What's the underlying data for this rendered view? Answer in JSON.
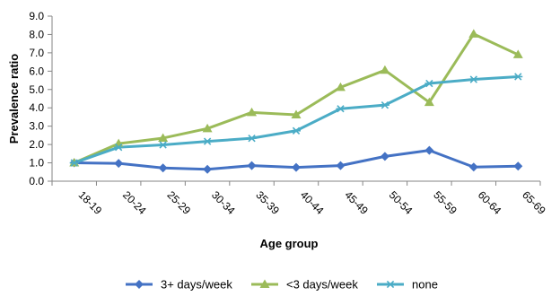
{
  "chart_data": {
    "type": "line",
    "title": "",
    "xlabel": "Age group",
    "ylabel": "Prevalence ratio",
    "ylim": [
      0,
      9
    ],
    "ytick_step": 1,
    "ytick_labels": [
      "0.0",
      "1.0",
      "2.0",
      "3.0",
      "4.0",
      "5.0",
      "6.0",
      "7.0",
      "8.0",
      "9.0"
    ],
    "grid": false,
    "legend_position": "bottom",
    "categories": [
      "18-19",
      "20-24",
      "25-29",
      "30-34",
      "35-39",
      "40-44",
      "45-49",
      "50-54",
      "55-59",
      "60-64",
      "65-69"
    ],
    "series": [
      {
        "name": "3+ days/week",
        "color": "#4472C4",
        "marker": "diamond",
        "values": [
          1.0,
          0.97,
          0.72,
          0.65,
          0.85,
          0.75,
          0.85,
          1.35,
          1.68,
          0.77,
          0.82
        ]
      },
      {
        "name": "<3 days/week",
        "color": "#9BBB59",
        "marker": "triangle",
        "values": [
          1.0,
          2.05,
          2.35,
          2.87,
          3.75,
          3.62,
          5.12,
          6.05,
          4.3,
          8.03,
          6.9
        ]
      },
      {
        "name": "none",
        "color": "#4BACC6",
        "marker": "star",
        "values": [
          1.0,
          1.85,
          1.98,
          2.17,
          2.34,
          2.75,
          3.95,
          4.15,
          5.33,
          5.55,
          5.7
        ]
      }
    ]
  }
}
